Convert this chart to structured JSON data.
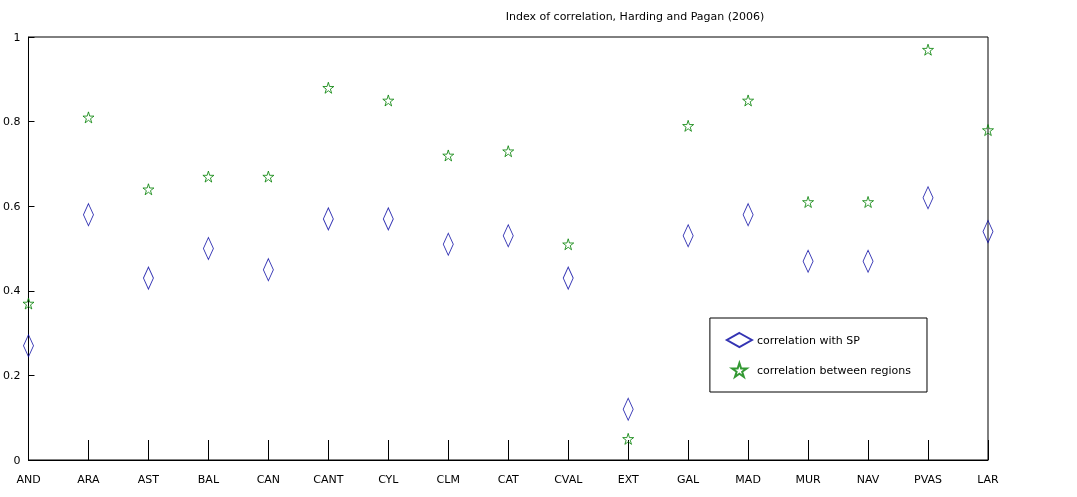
{
  "chart_data": {
    "type": "scatter",
    "title": "Index of correlation, Harding and Pagan (2006)",
    "categories": [
      "AND",
      "ARA",
      "AST",
      "BAL",
      "CAN",
      "CANT",
      "CYL",
      "CLM",
      "CAT",
      "CVAL",
      "EXT",
      "GAL",
      "MAD",
      "MUR",
      "NAV",
      "PVAS",
      "LAR"
    ],
    "series": [
      {
        "name": "correlation with SP",
        "color": "#0000a0",
        "marker": "diamond",
        "values": [
          0.27,
          0.58,
          0.43,
          0.5,
          0.45,
          0.57,
          0.57,
          0.51,
          0.53,
          0.43,
          0.12,
          0.53,
          0.58,
          0.47,
          0.47,
          0.62,
          0.54
        ]
      },
      {
        "name": "correlation between regions",
        "color": "#008000",
        "marker": "star",
        "values": [
          0.37,
          0.81,
          0.64,
          0.67,
          0.67,
          0.88,
          0.85,
          0.72,
          0.73,
          0.51,
          0.05,
          0.79,
          0.85,
          0.61,
          0.61,
          0.97,
          0.78
        ]
      }
    ],
    "ylim": [
      0,
      1
    ],
    "yticks": [
      0,
      0.2,
      0.4,
      0.6,
      0.8,
      1
    ],
    "grid": false,
    "legend": "bottom right"
  }
}
